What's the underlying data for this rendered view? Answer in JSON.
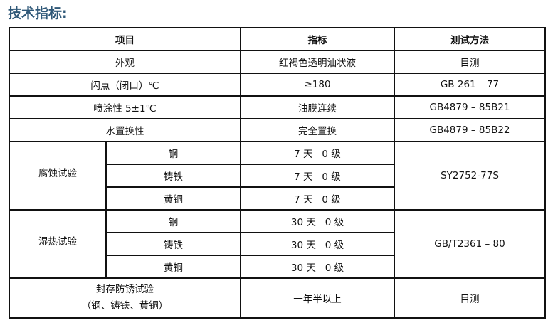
{
  "title": "技术指标:",
  "headers": [
    "项目",
    "指标",
    "测试方法"
  ],
  "rows": [
    {
      "item": "外观",
      "spec": "红褐色透明油状液",
      "method": "目测"
    },
    {
      "item": "闪点（闭口）℃",
      "spec": "≥180",
      "method": "GB 261 – 77"
    },
    {
      "item": "喷涂性 5±1℃",
      "spec": "油膜连续",
      "method": "GB4879 – 85B21"
    },
    {
      "item": "水置换性",
      "spec": "完全置换",
      "method": "GB4879 – 85B22"
    }
  ],
  "corrosion": {
    "item": "腐蚀试验",
    "method": "SY2752-77S",
    "subs": [
      {
        "metal": "钢",
        "spec": "7 天   0 级"
      },
      {
        "metal": "铸铁",
        "spec": "7 天   0 级"
      },
      {
        "metal": "黄铜",
        "spec": "7 天   0 级"
      }
    ]
  },
  "humid": {
    "item": "湿热试验",
    "method": "GB/T2361 – 80",
    "subs": [
      {
        "metal": "钢",
        "spec": "30 天   0 级"
      },
      {
        "metal": "铸铁",
        "spec": "30 天   0 级"
      },
      {
        "metal": "黄铜",
        "spec": "30 天   0 级"
      }
    ]
  },
  "storage": {
    "item_line1": "封存防锈试验",
    "item_line2": "（钢、铸铁、黄铜）",
    "spec": "一年半以上",
    "method": "目测"
  }
}
